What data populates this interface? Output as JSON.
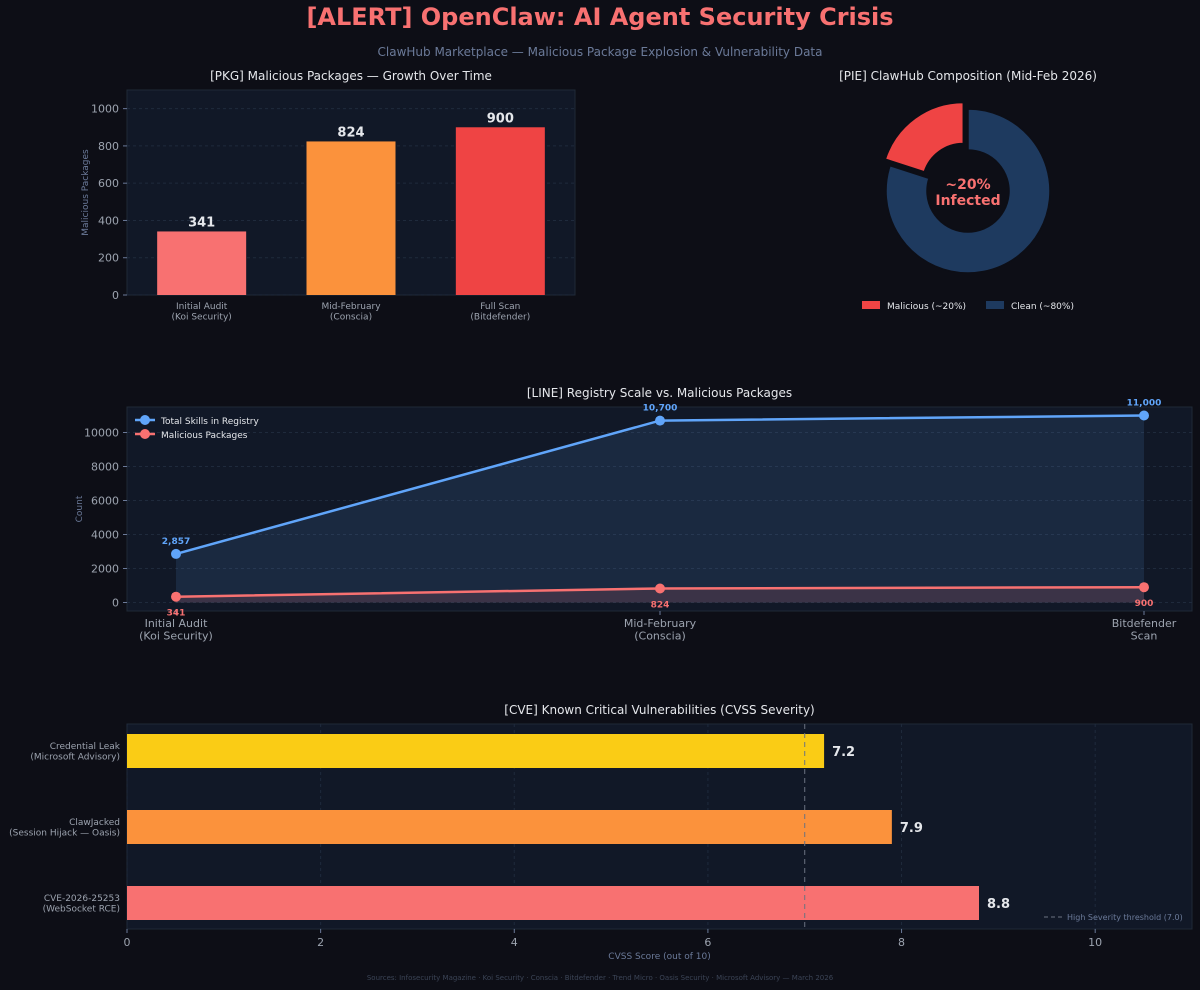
{
  "header": {
    "title": "[ALERT]  OpenClaw: AI Agent Security Crisis",
    "subtitle": "ClawHub Marketplace — Malicious Package Explosion & Vulnerability Data"
  },
  "footer": {
    "sources": "Sources: Infosecurity Magazine · Koi Security · Conscia · Bitdefender · Trend Micro · Oasis Security · Microsoft Advisory — March 2026"
  },
  "colors": {
    "background": "#0d0e16",
    "panel": "#111827",
    "title": "#f87171",
    "red_light": "#f87171",
    "orange": "#fb923c",
    "red": "#ef4444",
    "navy": "#1e3a5f",
    "blue": "#60a5fa",
    "yellow": "#facc15"
  },
  "chart_data": [
    {
      "id": "packages",
      "type": "bar",
      "title": "[PKG]  Malicious Packages — Growth Over Time",
      "xlabel": "",
      "ylabel": "Malicious Packages",
      "categories": [
        "Initial Audit\n(Koi Security)",
        "Mid-February\n(Conscia)",
        "Full Scan\n(Bitdefender)"
      ],
      "values": [
        341,
        824,
        900
      ],
      "value_labels": [
        "341",
        "824",
        "900"
      ],
      "colors": [
        "#f87171",
        "#fb923c",
        "#ef4444"
      ],
      "ylim": [
        0,
        1100
      ],
      "yticks": [
        0,
        200,
        400,
        600,
        800,
        1000
      ],
      "grid": true
    },
    {
      "id": "composition",
      "type": "pie",
      "title": "[PIE]  ClawHub Composition (Mid-Feb 2026)",
      "center_label": [
        "~20%",
        "Infected"
      ],
      "slices": [
        {
          "label": "Malicious (~20%)",
          "value": 20,
          "color": "#ef4444"
        },
        {
          "label": "Clean (~80%)",
          "value": 80,
          "color": "#1e3a5f"
        }
      ],
      "legend": "bottom"
    },
    {
      "id": "registry",
      "type": "line",
      "title": "[LINE]  Registry Scale vs. Malicious Packages",
      "xlabel": "",
      "ylabel": "Count",
      "categories": [
        "Initial Audit\n(Koi Security)",
        "Mid-February\n(Conscia)",
        "Bitdefender\nScan"
      ],
      "series": [
        {
          "name": "Total Skills in Registry",
          "values": [
            2857,
            10700,
            11000
          ],
          "labels": [
            "2,857",
            "10,700",
            "11,000"
          ],
          "color": "#60a5fa"
        },
        {
          "name": "Malicious Packages",
          "values": [
            341,
            824,
            900
          ],
          "labels": [
            "341",
            "824",
            "900"
          ],
          "color": "#f87171"
        }
      ],
      "ylim": [
        -500,
        11500
      ],
      "yticks": [
        0,
        2000,
        4000,
        6000,
        8000,
        10000
      ],
      "legend": "top-left",
      "grid": true
    },
    {
      "id": "cve",
      "type": "bar",
      "orientation": "horizontal",
      "title": "[CVE]  Known Critical Vulnerabilities (CVSS Severity)",
      "xlabel": "CVSS Score (out of 10)",
      "ylabel": "",
      "categories": [
        "CVE-2026-25253\n(WebSocket RCE)",
        "ClawJacked\n(Session Hijack — Oasis)",
        "Credential Leak\n(Microsoft Advisory)"
      ],
      "values": [
        8.8,
        7.9,
        7.2
      ],
      "value_labels": [
        "8.8",
        "7.9",
        "7.2"
      ],
      "colors": [
        "#f87171",
        "#fb923c",
        "#facc15"
      ],
      "xlim": [
        0,
        11
      ],
      "xticks": [
        0,
        2,
        4,
        6,
        8,
        10
      ],
      "threshold": {
        "value": 7.0,
        "label": "High Severity threshold (7.0)"
      },
      "legend": "bottom-right",
      "grid": true
    }
  ]
}
